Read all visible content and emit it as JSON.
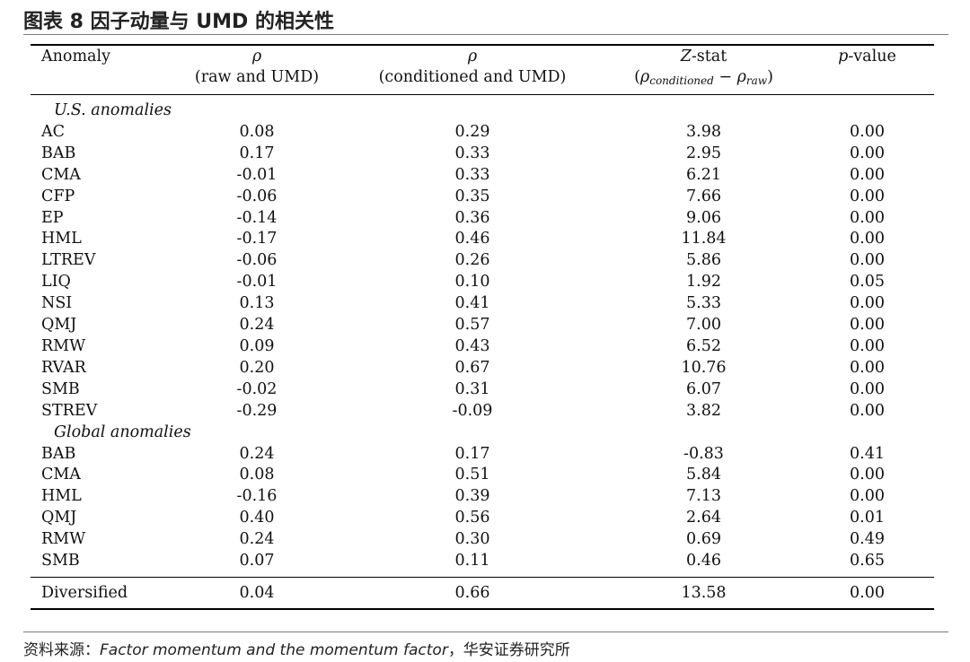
{
  "title": "图表 8 因子动量与 UMD 的相关性",
  "headers": {
    "anomaly": "Anomaly",
    "rho_symbol": "ρ",
    "raw_sub": "(raw and UMD)",
    "cond_sub": "(conditioned and UMD)",
    "zstat_letter": "Z",
    "zstat_rest": "-stat",
    "zstat_sub_open": "(",
    "zstat_rho1": "ρ",
    "zstat_sub1": "conditioned",
    "zstat_minus": " − ",
    "zstat_rho2": "ρ",
    "zstat_sub2": "raw",
    "zstat_sub_close": ")",
    "p_letter": "p",
    "p_rest": "-value"
  },
  "us_section_label": "U.S. anomalies",
  "us_rows": [
    {
      "name": "AC",
      "raw": "0.08",
      "cond": "0.29",
      "z": "3.98",
      "p": "0.00"
    },
    {
      "name": "BAB",
      "raw": "0.17",
      "cond": "0.33",
      "z": "2.95",
      "p": "0.00"
    },
    {
      "name": "CMA",
      "raw": "-0.01",
      "cond": "0.33",
      "z": "6.21",
      "p": "0.00"
    },
    {
      "name": "CFP",
      "raw": "-0.06",
      "cond": "0.35",
      "z": "7.66",
      "p": "0.00"
    },
    {
      "name": "EP",
      "raw": "-0.14",
      "cond": "0.36",
      "z": "9.06",
      "p": "0.00"
    },
    {
      "name": "HML",
      "raw": "-0.17",
      "cond": "0.46",
      "z": "11.84",
      "p": "0.00"
    },
    {
      "name": "LTREV",
      "raw": "-0.06",
      "cond": "0.26",
      "z": "5.86",
      "p": "0.00"
    },
    {
      "name": "LIQ",
      "raw": "-0.01",
      "cond": "0.10",
      "z": "1.92",
      "p": "0.05"
    },
    {
      "name": "NSI",
      "raw": "0.13",
      "cond": "0.41",
      "z": "5.33",
      "p": "0.00"
    },
    {
      "name": "QMJ",
      "raw": "0.24",
      "cond": "0.57",
      "z": "7.00",
      "p": "0.00"
    },
    {
      "name": "RMW",
      "raw": "0.09",
      "cond": "0.43",
      "z": "6.52",
      "p": "0.00"
    },
    {
      "name": "RVAR",
      "raw": "0.20",
      "cond": "0.67",
      "z": "10.76",
      "p": "0.00"
    },
    {
      "name": "SMB",
      "raw": "-0.02",
      "cond": "0.31",
      "z": "6.07",
      "p": "0.00"
    },
    {
      "name": "STREV",
      "raw": "-0.29",
      "cond": "-0.09",
      "z": "3.82",
      "p": "0.00"
    }
  ],
  "global_section_label": "Global anomalies",
  "global_rows": [
    {
      "name": "BAB",
      "raw": "0.24",
      "cond": "0.17",
      "z": "-0.83",
      "p": "0.41"
    },
    {
      "name": "CMA",
      "raw": "0.08",
      "cond": "0.51",
      "z": "5.84",
      "p": "0.00"
    },
    {
      "name": "HML",
      "raw": "-0.16",
      "cond": "0.39",
      "z": "7.13",
      "p": "0.00"
    },
    {
      "name": "QMJ",
      "raw": "0.40",
      "cond": "0.56",
      "z": "2.64",
      "p": "0.01"
    },
    {
      "name": "RMW",
      "raw": "0.24",
      "cond": "0.30",
      "z": "0.69",
      "p": "0.49"
    },
    {
      "name": "SMB",
      "raw": "0.07",
      "cond": "0.11",
      "z": "0.46",
      "p": "0.65"
    }
  ],
  "diversified": {
    "name": "Diversified",
    "raw": "0.04",
    "cond": "0.66",
    "z": "13.58",
    "p": "0.00"
  },
  "source": {
    "prefix": "资料来源：",
    "paper": "Factor momentum and the momentum factor",
    "suffix": "，华安证券研究所"
  }
}
